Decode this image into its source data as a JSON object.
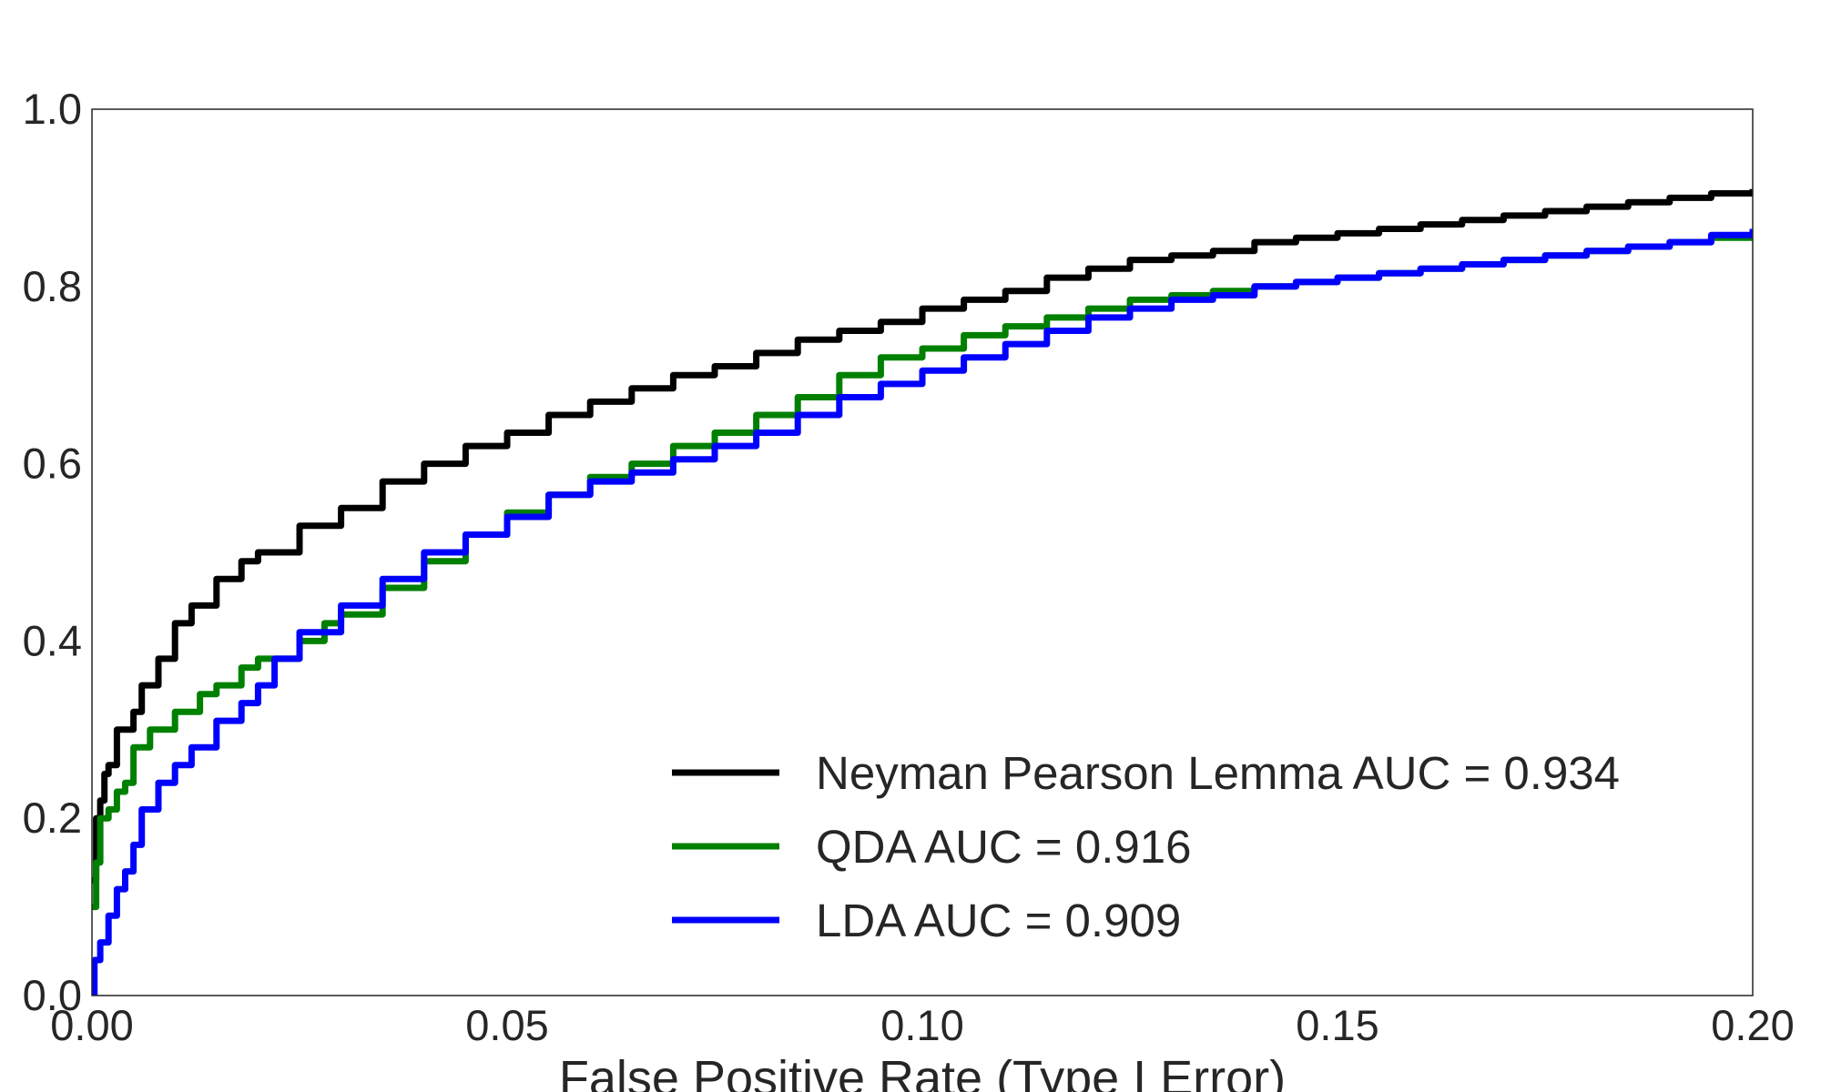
{
  "chart_data": {
    "type": "line",
    "title": "",
    "xlabel": "False Positive Rate (Type I Error)",
    "ylabel": "",
    "xlim": [
      0.0,
      0.2
    ],
    "ylim": [
      0.0,
      1.0
    ],
    "x_ticks": [
      "0.00",
      "0.05",
      "0.10",
      "0.15",
      "0.20"
    ],
    "y_ticks": [
      "0.0",
      "0.2",
      "0.4",
      "0.6",
      "0.8",
      "1.0"
    ],
    "grid": false,
    "legend_position": "lower-right",
    "series": [
      {
        "name": "Neyman Pearson Lemma AUC = 0.934",
        "color": "#000000",
        "points": [
          [
            0,
            0.13
          ],
          [
            0.0005,
            0.2
          ],
          [
            0.001,
            0.22
          ],
          [
            0.0015,
            0.25
          ],
          [
            0.002,
            0.26
          ],
          [
            0.003,
            0.3
          ],
          [
            0.005,
            0.32
          ],
          [
            0.006,
            0.35
          ],
          [
            0.008,
            0.38
          ],
          [
            0.01,
            0.42
          ],
          [
            0.012,
            0.44
          ],
          [
            0.015,
            0.47
          ],
          [
            0.018,
            0.49
          ],
          [
            0.02,
            0.5
          ],
          [
            0.025,
            0.53
          ],
          [
            0.03,
            0.55
          ],
          [
            0.035,
            0.58
          ],
          [
            0.04,
            0.6
          ],
          [
            0.045,
            0.62
          ],
          [
            0.05,
            0.635
          ],
          [
            0.055,
            0.655
          ],
          [
            0.06,
            0.67
          ],
          [
            0.065,
            0.685
          ],
          [
            0.07,
            0.7
          ],
          [
            0.075,
            0.71
          ],
          [
            0.08,
            0.725
          ],
          [
            0.085,
            0.74
          ],
          [
            0.09,
            0.75
          ],
          [
            0.095,
            0.76
          ],
          [
            0.1,
            0.775
          ],
          [
            0.105,
            0.785
          ],
          [
            0.11,
            0.795
          ],
          [
            0.115,
            0.81
          ],
          [
            0.12,
            0.82
          ],
          [
            0.125,
            0.83
          ],
          [
            0.13,
            0.835
          ],
          [
            0.135,
            0.84
          ],
          [
            0.14,
            0.85
          ],
          [
            0.145,
            0.855
          ],
          [
            0.15,
            0.86
          ],
          [
            0.155,
            0.865
          ],
          [
            0.16,
            0.87
          ],
          [
            0.165,
            0.875
          ],
          [
            0.17,
            0.88
          ],
          [
            0.175,
            0.885
          ],
          [
            0.18,
            0.89
          ],
          [
            0.185,
            0.895
          ],
          [
            0.19,
            0.9
          ],
          [
            0.195,
            0.905
          ],
          [
            0.2,
            0.91
          ]
        ]
      },
      {
        "name": "QDA AUC = 0.916",
        "color": "#008000",
        "points": [
          [
            0,
            0.1
          ],
          [
            0.0005,
            0.15
          ],
          [
            0.001,
            0.2
          ],
          [
            0.002,
            0.21
          ],
          [
            0.003,
            0.23
          ],
          [
            0.004,
            0.24
          ],
          [
            0.005,
            0.28
          ],
          [
            0.007,
            0.3
          ],
          [
            0.01,
            0.32
          ],
          [
            0.013,
            0.34
          ],
          [
            0.015,
            0.35
          ],
          [
            0.018,
            0.37
          ],
          [
            0.02,
            0.38
          ],
          [
            0.025,
            0.4
          ],
          [
            0.028,
            0.42
          ],
          [
            0.03,
            0.43
          ],
          [
            0.035,
            0.46
          ],
          [
            0.04,
            0.49
          ],
          [
            0.045,
            0.52
          ],
          [
            0.05,
            0.545
          ],
          [
            0.055,
            0.565
          ],
          [
            0.06,
            0.585
          ],
          [
            0.065,
            0.6
          ],
          [
            0.07,
            0.62
          ],
          [
            0.075,
            0.635
          ],
          [
            0.08,
            0.655
          ],
          [
            0.085,
            0.675
          ],
          [
            0.09,
            0.7
          ],
          [
            0.095,
            0.72
          ],
          [
            0.1,
            0.73
          ],
          [
            0.105,
            0.745
          ],
          [
            0.11,
            0.755
          ],
          [
            0.115,
            0.765
          ],
          [
            0.12,
            0.775
          ],
          [
            0.125,
            0.785
          ],
          [
            0.13,
            0.79
          ],
          [
            0.135,
            0.795
          ],
          [
            0.14,
            0.8
          ],
          [
            0.145,
            0.805
          ],
          [
            0.15,
            0.81
          ],
          [
            0.155,
            0.815
          ],
          [
            0.16,
            0.82
          ],
          [
            0.165,
            0.825
          ],
          [
            0.17,
            0.83
          ],
          [
            0.175,
            0.835
          ],
          [
            0.18,
            0.84
          ],
          [
            0.185,
            0.845
          ],
          [
            0.19,
            0.85
          ],
          [
            0.195,
            0.855
          ],
          [
            0.2,
            0.86
          ]
        ]
      },
      {
        "name": "LDA AUC = 0.909",
        "color": "#0000ff",
        "points": [
          [
            0,
            0.0
          ],
          [
            0.0003,
            0.04
          ],
          [
            0.001,
            0.06
          ],
          [
            0.002,
            0.09
          ],
          [
            0.003,
            0.12
          ],
          [
            0.004,
            0.14
          ],
          [
            0.005,
            0.17
          ],
          [
            0.006,
            0.21
          ],
          [
            0.008,
            0.24
          ],
          [
            0.01,
            0.26
          ],
          [
            0.012,
            0.28
          ],
          [
            0.015,
            0.31
          ],
          [
            0.018,
            0.33
          ],
          [
            0.02,
            0.35
          ],
          [
            0.022,
            0.38
          ],
          [
            0.025,
            0.41
          ],
          [
            0.03,
            0.44
          ],
          [
            0.035,
            0.47
          ],
          [
            0.04,
            0.5
          ],
          [
            0.045,
            0.52
          ],
          [
            0.05,
            0.54
          ],
          [
            0.055,
            0.565
          ],
          [
            0.06,
            0.58
          ],
          [
            0.065,
            0.59
          ],
          [
            0.07,
            0.605
          ],
          [
            0.075,
            0.62
          ],
          [
            0.08,
            0.635
          ],
          [
            0.085,
            0.655
          ],
          [
            0.09,
            0.675
          ],
          [
            0.095,
            0.69
          ],
          [
            0.1,
            0.705
          ],
          [
            0.105,
            0.72
          ],
          [
            0.11,
            0.735
          ],
          [
            0.115,
            0.75
          ],
          [
            0.12,
            0.765
          ],
          [
            0.125,
            0.775
          ],
          [
            0.13,
            0.785
          ],
          [
            0.135,
            0.79
          ],
          [
            0.14,
            0.8
          ],
          [
            0.145,
            0.805
          ],
          [
            0.15,
            0.81
          ],
          [
            0.155,
            0.815
          ],
          [
            0.16,
            0.82
          ],
          [
            0.165,
            0.825
          ],
          [
            0.17,
            0.83
          ],
          [
            0.175,
            0.835
          ],
          [
            0.18,
            0.84
          ],
          [
            0.185,
            0.845
          ],
          [
            0.19,
            0.85
          ],
          [
            0.195,
            0.858
          ],
          [
            0.2,
            0.865
          ]
        ]
      }
    ]
  }
}
